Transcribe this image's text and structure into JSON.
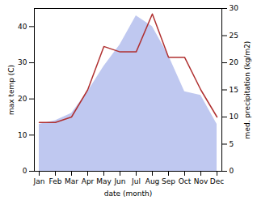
{
  "chart_data": {
    "type": "area",
    "categories": [
      "Jan",
      "Feb",
      "Mar",
      "Apr",
      "May",
      "Jun",
      "Jul",
      "Aug",
      "Sep",
      "Oct",
      "Nov",
      "Dec"
    ],
    "xlabel": "date (month)",
    "ylabel": "max temp (C)",
    "y2label": "med. precipitation (kg/m2)",
    "ylim": [
      0,
      45
    ],
    "yticks": [
      0,
      10,
      20,
      30,
      40
    ],
    "y2lim": [
      0,
      30
    ],
    "y2ticks": [
      0,
      5,
      10,
      15,
      20,
      25,
      30
    ],
    "series": [
      {
        "type": "area",
        "color": "#bfc8f0",
        "values": [
          13,
          14,
          16,
          22,
          29,
          35,
          43,
          40,
          32,
          22,
          21,
          13
        ]
      },
      {
        "type": "line",
        "color": "#b03030",
        "axis": "y2",
        "values": [
          9,
          9,
          10,
          15,
          23,
          22,
          22,
          29,
          21,
          21,
          15,
          10
        ]
      }
    ]
  }
}
